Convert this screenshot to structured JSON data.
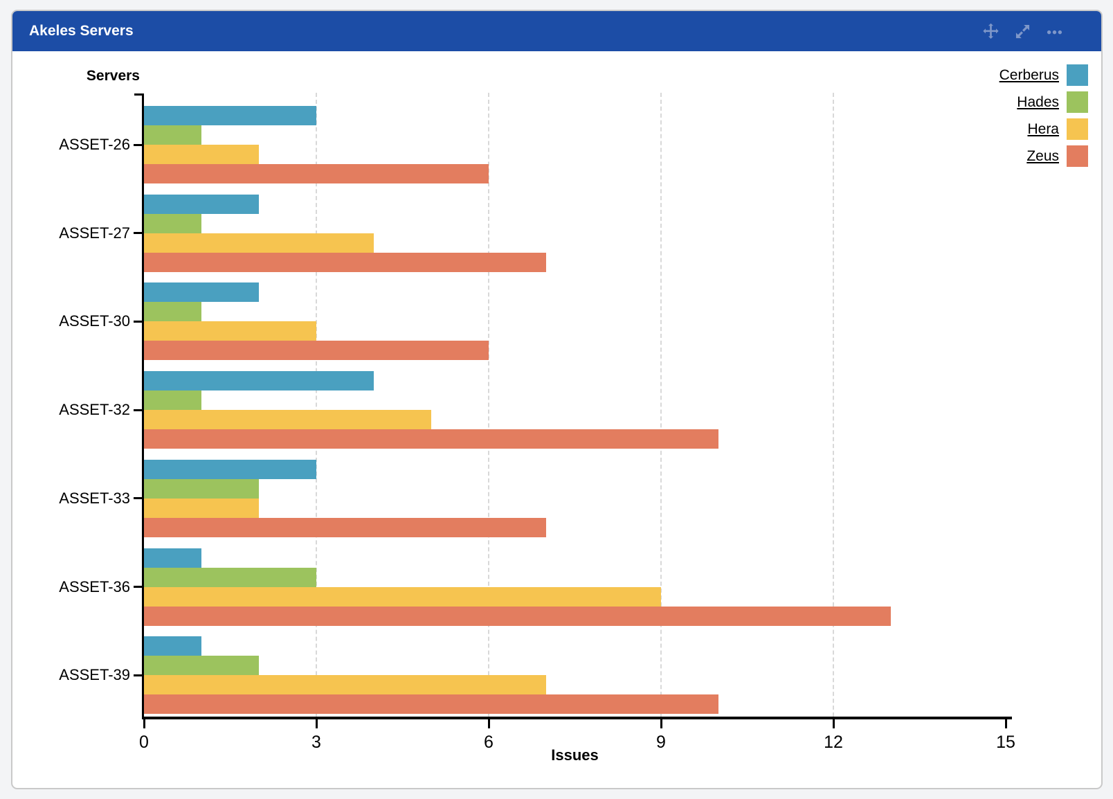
{
  "panel": {
    "title": "Akeles Servers",
    "header_color": "#1c4da6",
    "header_icon_color": "#7e97c9",
    "icons": [
      "move-icon",
      "maximize-icon",
      "ellipsis-icon"
    ]
  },
  "chart_data": {
    "type": "bar",
    "orientation": "horizontal",
    "ylabel": "Servers",
    "xlabel": "Issues",
    "categories": [
      "ASSET-26",
      "ASSET-27",
      "ASSET-30",
      "ASSET-32",
      "ASSET-33",
      "ASSET-36",
      "ASSET-39"
    ],
    "series": [
      {
        "name": "Cerberus",
        "color": "#4aa0c0",
        "values": [
          3,
          2,
          2,
          4,
          3,
          1,
          1
        ]
      },
      {
        "name": "Hades",
        "color": "#9cc35e",
        "values": [
          1,
          1,
          1,
          1,
          2,
          3,
          2
        ]
      },
      {
        "name": "Hera",
        "color": "#f6c450",
        "values": [
          2,
          4,
          3,
          5,
          2,
          9,
          7
        ]
      },
      {
        "name": "Zeus",
        "color": "#e37d5f",
        "values": [
          6,
          7,
          6,
          10,
          7,
          13,
          10
        ]
      }
    ],
    "xlim": [
      0,
      15
    ],
    "x_ticks": [
      0,
      3,
      6,
      9,
      12,
      15
    ],
    "gridlines_at": [
      3,
      6,
      9,
      12
    ],
    "grid": "vertical-dashed",
    "legend_position": "top-right"
  }
}
